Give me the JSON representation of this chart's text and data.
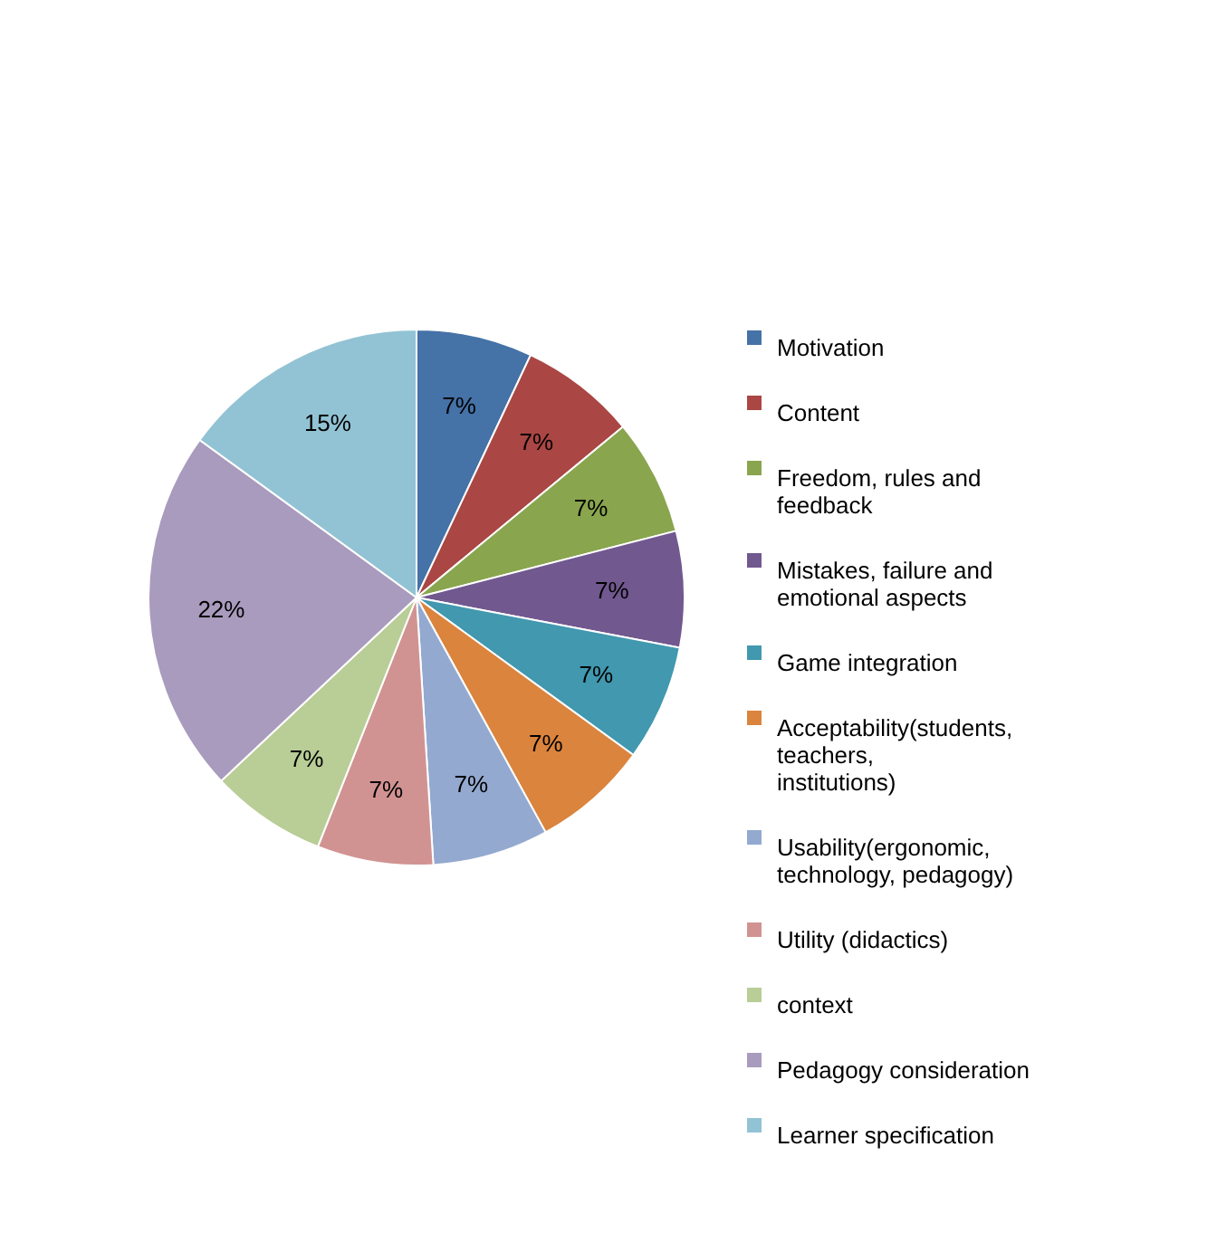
{
  "chart_data": {
    "type": "pie",
    "categories": [
      "Motivation",
      "Content",
      "Freedom, rules and feedback",
      "Mistakes, failure and emotional aspects",
      "Game integration",
      "Acceptability(students, teachers, institutions)",
      "Usability(ergonomic, technology, pedagogy)",
      "Utility (didactics)",
      "context",
      "Pedagogy consideration",
      "Learner specification"
    ],
    "values": [
      7,
      7,
      7,
      7,
      7,
      7,
      7,
      7,
      7,
      22,
      15
    ],
    "value_labels": [
      "7%",
      "7%",
      "7%",
      "7%",
      "7%",
      "7%",
      "7%",
      "7%",
      "7%",
      "22%",
      "15%"
    ],
    "colors": [
      "#4572a7",
      "#aa4643",
      "#89a54e",
      "#71588f",
      "#4198af",
      "#db843d",
      "#93a9cf",
      "#d19392",
      "#b9cd96",
      "#a99bbd",
      "#92c3d4"
    ],
    "legend": "right"
  }
}
